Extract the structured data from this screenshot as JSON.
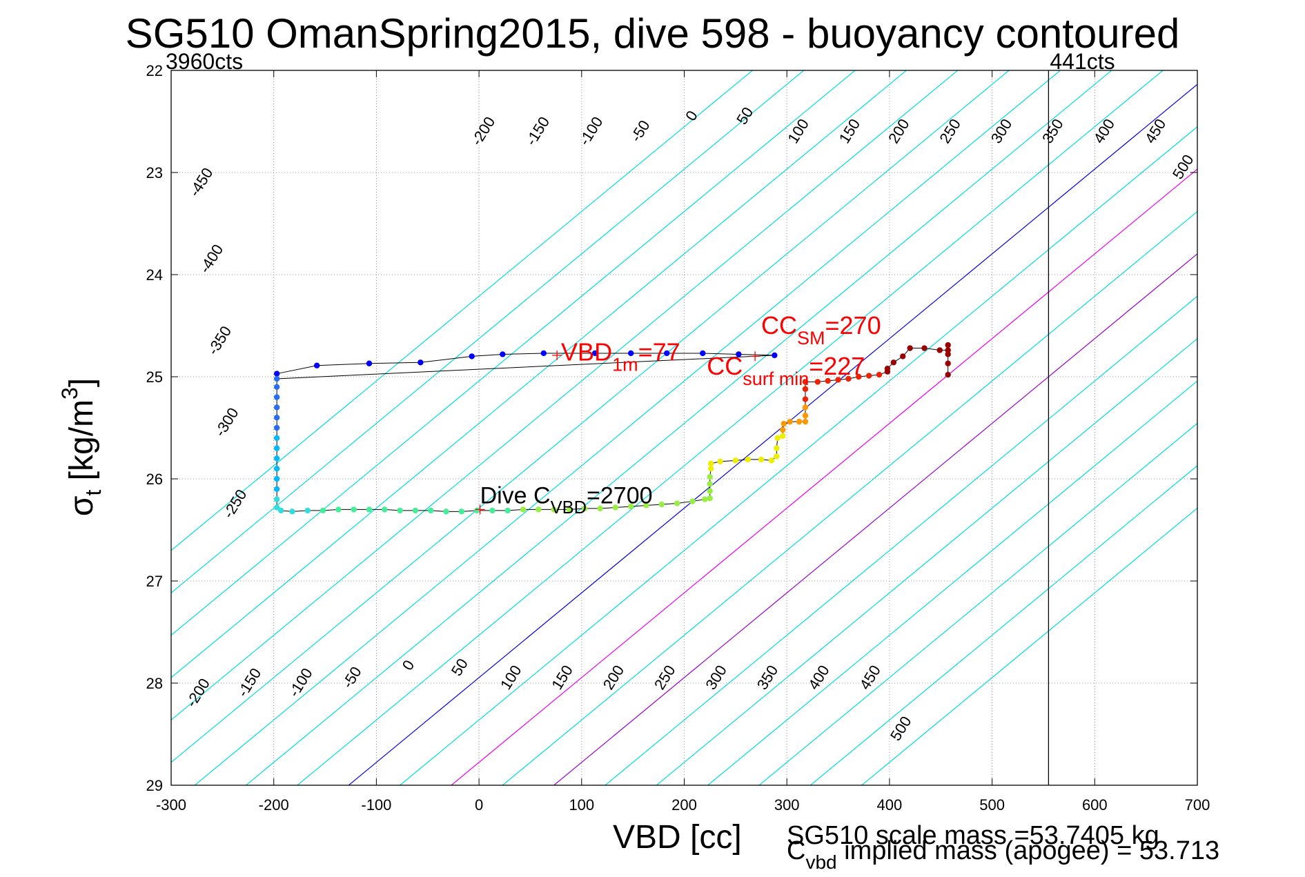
{
  "chart_data": {
    "type": "scatter",
    "title": "SG510 OmanSpring2015, dive 598 - buoyancy contoured",
    "xlabel": "VBD [cc]",
    "ylabel": {
      "symbol": "σ",
      "sub": "t",
      "unit_prefix": " [kg/m",
      "unit_sup": "3",
      "unit_suffix": "]"
    },
    "xlim": [
      -300,
      700
    ],
    "ylim": [
      29,
      22
    ],
    "y_reversed": true,
    "grid": true,
    "x_ticks": [
      "-300",
      "-200",
      "-100",
      "0",
      "100",
      "200",
      "300",
      "400",
      "500",
      "600",
      "700"
    ],
    "y_ticks": [
      "22",
      "23",
      "24",
      "25",
      "26",
      "27",
      "28",
      "29"
    ],
    "corner_labels": {
      "left": "3960cts",
      "right": "441cts"
    },
    "vbd_limit_line_x": 555,
    "contours": {
      "note_units": "cc",
      "levels": [
        -450,
        -400,
        -350,
        -300,
        -250,
        -200,
        -150,
        -100,
        -50,
        0,
        50,
        100,
        150,
        200,
        250,
        300,
        350,
        400,
        450,
        500
      ],
      "slope_cc_per_sigma": 120.5,
      "x_at_sigma29_for_level0": -127,
      "highlight": {
        "0": "#0000dd",
        "100": "#ee00ee",
        "200": "#9900cc"
      },
      "default_color": "#00dddd",
      "upper_labels": [
        {
          "t": "-450",
          "x": -270,
          "y": 23.1
        },
        {
          "t": "-400",
          "x": -260,
          "y": 23.85
        },
        {
          "t": "-350",
          "x": -252,
          "y": 24.65
        },
        {
          "t": "-300",
          "x": -245,
          "y": 25.45
        },
        {
          "t": "-250",
          "x": -237,
          "y": 26.25
        },
        {
          "t": "-200",
          "x": 5,
          "y": 22.6
        },
        {
          "t": "-150",
          "x": 58,
          "y": 22.6
        },
        {
          "t": "-100",
          "x": 110,
          "y": 22.6
        },
        {
          "t": "-50",
          "x": 158,
          "y": 22.6
        },
        {
          "t": "0",
          "x": 208,
          "y": 22.45
        },
        {
          "t": "50",
          "x": 260,
          "y": 22.45
        },
        {
          "t": "100",
          "x": 312,
          "y": 22.6
        },
        {
          "t": "150",
          "x": 362,
          "y": 22.6
        },
        {
          "t": "200",
          "x": 410,
          "y": 22.6
        },
        {
          "t": "250",
          "x": 460,
          "y": 22.6
        },
        {
          "t": "300",
          "x": 510,
          "y": 22.6
        },
        {
          "t": "350",
          "x": 560,
          "y": 22.6
        },
        {
          "t": "400",
          "x": 610,
          "y": 22.6
        },
        {
          "t": "450",
          "x": 660,
          "y": 22.6
        },
        {
          "t": "500",
          "x": 687,
          "y": 22.95
        }
      ],
      "lower_labels": [
        {
          "t": "-200",
          "x": -273,
          "y": 28.1
        },
        {
          "t": "-150",
          "x": -223,
          "y": 28.0
        },
        {
          "t": "-100",
          "x": -173,
          "y": 28.0
        },
        {
          "t": "-50",
          "x": -123,
          "y": 27.95
        },
        {
          "t": "0",
          "x": -68,
          "y": 27.83
        },
        {
          "t": "50",
          "x": -18,
          "y": 27.85
        },
        {
          "t": "100",
          "x": 32,
          "y": 27.95
        },
        {
          "t": "150",
          "x": 82,
          "y": 27.95
        },
        {
          "t": "200",
          "x": 132,
          "y": 27.95
        },
        {
          "t": "250",
          "x": 182,
          "y": 27.95
        },
        {
          "t": "300",
          "x": 232,
          "y": 27.95
        },
        {
          "t": "350",
          "x": 282,
          "y": 27.95
        },
        {
          "t": "400",
          "x": 332,
          "y": 27.95
        },
        {
          "t": "450",
          "x": 382,
          "y": 27.95
        },
        {
          "t": "500",
          "x": 412,
          "y": 28.45
        }
      ]
    },
    "series": [
      {
        "color": "#0000ff",
        "points": [
          [
            -197,
            24.97
          ],
          [
            -158,
            24.89
          ],
          [
            -107,
            24.87
          ],
          [
            -57,
            24.86
          ],
          [
            -7,
            24.8
          ],
          [
            23,
            24.78
          ],
          [
            63,
            24.77
          ],
          [
            113,
            24.77
          ],
          [
            148,
            24.77
          ],
          [
            183,
            24.77
          ],
          [
            218,
            24.77
          ],
          [
            253,
            24.78
          ],
          [
            288,
            24.79
          ]
        ]
      },
      {
        "color": "#2a6cf5",
        "points": [
          [
            -197,
            25.02
          ],
          [
            -197,
            25.1
          ],
          [
            -197,
            25.2
          ],
          [
            -197,
            25.3
          ],
          [
            -197,
            25.4
          ],
          [
            -197,
            25.5
          ]
        ]
      },
      {
        "color": "#00b8ff",
        "points": [
          [
            -197,
            25.6
          ],
          [
            -197,
            25.7
          ],
          [
            -197,
            25.8
          ],
          [
            -197,
            25.9
          ],
          [
            -197,
            26.0
          ],
          [
            -197,
            26.1
          ]
        ]
      },
      {
        "color": "#33dddd",
        "points": [
          [
            -197,
            26.2
          ],
          [
            -197,
            26.28
          ],
          [
            -193,
            26.31
          ],
          [
            -182,
            26.32
          ],
          [
            -167,
            26.31
          ]
        ]
      },
      {
        "color": "#44ee99",
        "points": [
          [
            -152,
            26.31
          ],
          [
            -137,
            26.3
          ],
          [
            -122,
            26.3
          ],
          [
            -107,
            26.3
          ],
          [
            -92,
            26.3
          ],
          [
            -77,
            26.31
          ],
          [
            -62,
            26.31
          ],
          [
            -47,
            26.31
          ],
          [
            -32,
            26.32
          ],
          [
            -17,
            26.32
          ],
          [
            -2,
            26.31
          ],
          [
            13,
            26.31
          ],
          [
            28,
            26.31
          ]
        ]
      },
      {
        "color": "#99ee44",
        "points": [
          [
            43,
            26.3
          ],
          [
            58,
            26.3
          ],
          [
            73,
            26.3
          ],
          [
            88,
            26.3
          ],
          [
            103,
            26.29
          ],
          [
            118,
            26.29
          ],
          [
            133,
            26.28
          ],
          [
            148,
            26.27
          ],
          [
            163,
            26.26
          ],
          [
            178,
            26.25
          ],
          [
            193,
            26.24
          ],
          [
            208,
            26.22
          ],
          [
            220,
            26.2
          ],
          [
            225,
            26.19
          ],
          [
            225,
            26.12
          ],
          [
            225,
            26.05
          ],
          [
            225,
            25.98
          ]
        ]
      },
      {
        "color": "#eeee00",
        "points": [
          [
            226,
            25.9
          ],
          [
            226,
            25.85
          ],
          [
            235,
            25.83
          ],
          [
            250,
            25.82
          ],
          [
            262,
            25.81
          ],
          [
            275,
            25.81
          ],
          [
            285,
            25.82
          ],
          [
            290,
            25.78
          ],
          [
            290,
            25.7
          ],
          [
            291,
            25.6
          ],
          [
            296,
            25.58
          ]
        ]
      },
      {
        "color": "#ff9900",
        "points": [
          [
            296,
            25.52
          ],
          [
            297,
            25.46
          ],
          [
            303,
            25.44
          ],
          [
            312,
            25.44
          ],
          [
            318,
            25.44
          ],
          [
            318,
            25.38
          ],
          [
            318,
            25.3
          ]
        ]
      },
      {
        "color": "#ee2200",
        "points": [
          [
            318,
            25.22
          ],
          [
            318,
            25.12
          ],
          [
            318,
            25.05
          ],
          [
            330,
            25.05
          ],
          [
            340,
            25.04
          ],
          [
            350,
            25.03
          ],
          [
            360,
            25.02
          ],
          [
            370,
            25.0
          ],
          [
            380,
            24.99
          ],
          [
            390,
            24.98
          ]
        ]
      },
      {
        "color": "#990000",
        "points": [
          [
            398,
            24.95
          ],
          [
            398,
            24.92
          ],
          [
            404,
            24.86
          ],
          [
            413,
            24.8
          ],
          [
            420,
            24.72
          ],
          [
            434,
            24.72
          ],
          [
            449,
            24.74
          ],
          [
            457,
            24.74
          ],
          [
            457,
            24.69
          ],
          [
            457,
            24.78
          ],
          [
            457,
            24.87
          ],
          [
            457,
            24.98
          ]
        ]
      }
    ],
    "annotations": [
      {
        "name": "vbd-1m-label",
        "main": "VBD",
        "sub": "1m",
        "tail": "=77",
        "color": "#ff0000",
        "marker": [
          76,
          24.79
        ],
        "x": 80,
        "y": 24.84,
        "font_px": 36
      },
      {
        "name": "cc-sm-label",
        "main": "CC",
        "sub": "SM",
        "tail": "=270",
        "color": "#ff0000",
        "marker": null,
        "x": 275,
        "y": 24.58,
        "font_px": 36
      },
      {
        "name": "cc-surf-min-label",
        "main": "CC",
        "sub": "surf min",
        "tail": "=227",
        "color": "#ff0000",
        "marker": [
          269,
          24.8
        ],
        "x": 222,
        "y": 24.98,
        "font_px": 36
      },
      {
        "name": "dive-cvbd-label",
        "main": "Dive C",
        "sub": "VBD",
        "tail": "=2700",
        "color": "#000000",
        "marker": [
          1,
          26.3
        ],
        "x": 1,
        "y": 26.24,
        "font_px": 34
      }
    ]
  },
  "footer": {
    "scale_mass": "SG510 scale mass =53.7405 kg",
    "implied_mass_symbol": "C",
    "implied_mass_sub": "vbd",
    "implied_mass_tail": " implied mass (apogee) = 53.713"
  }
}
